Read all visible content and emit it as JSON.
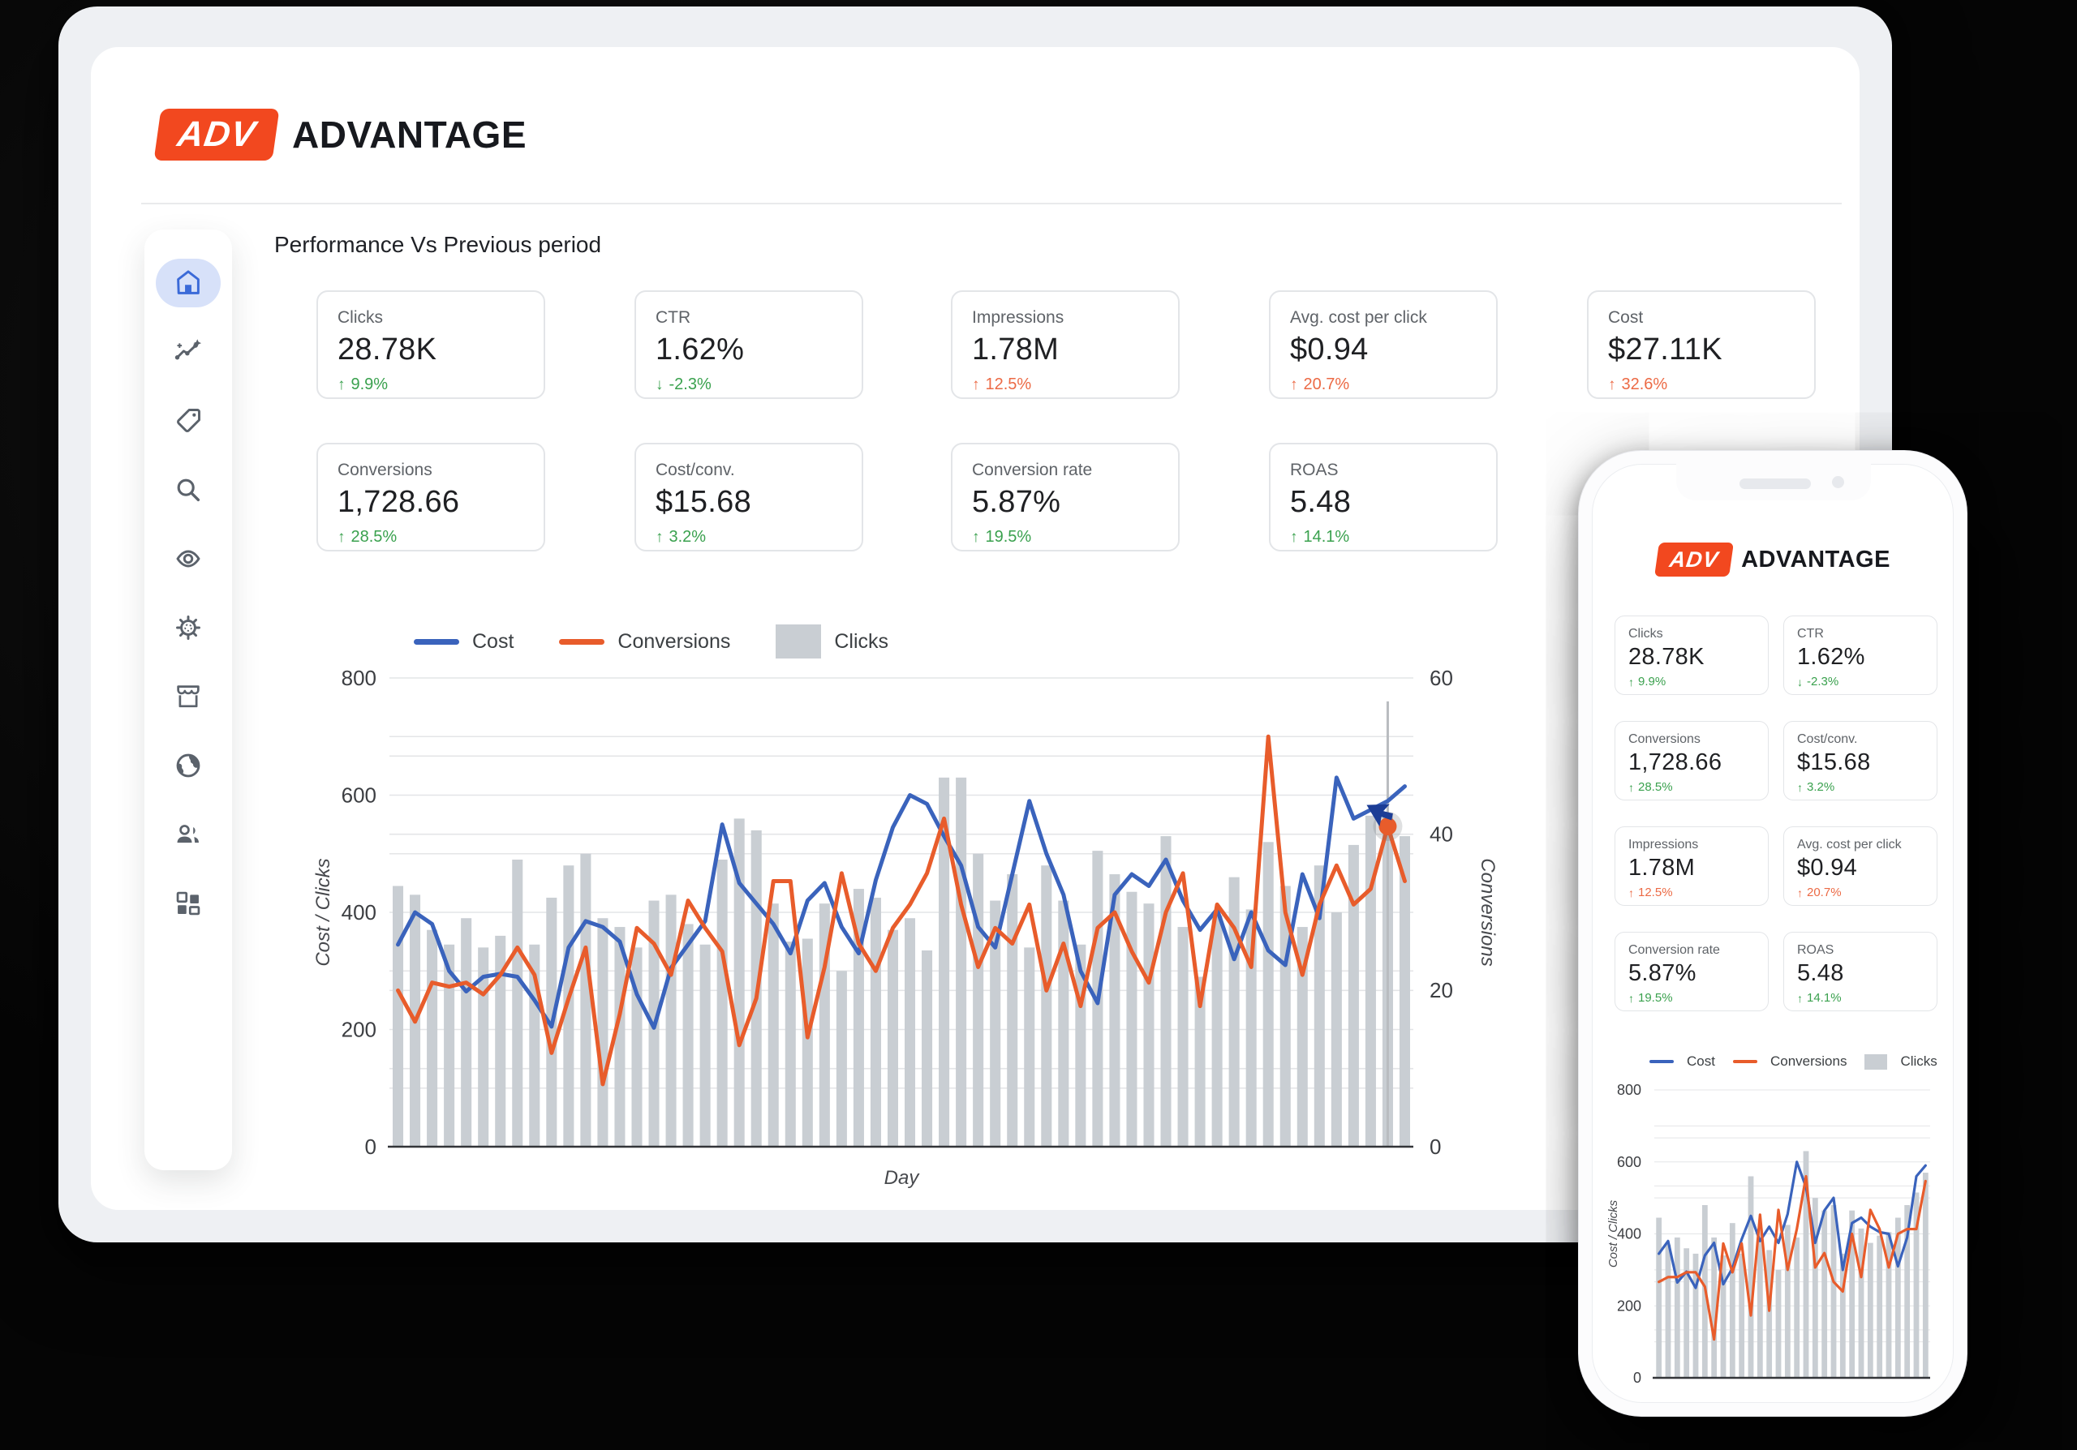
{
  "brand": {
    "badge": "ADV",
    "name": "ADVANTAGE"
  },
  "page": {
    "title": "Performance Vs Previous period"
  },
  "colors": {
    "accent_orange": "#f2481f",
    "positive_green": "#3aa14e",
    "negative_orange": "#ec6a45",
    "line_blue": "#3a63bc",
    "line_orange": "#e85c2b",
    "bar_gray": "#c9ced3",
    "active_blue": "#3b6ad8",
    "active_pill": "#d7e1f9",
    "icon_gray": "#5b626b",
    "crosshair_gray": "#b9bcc0"
  },
  "sidebar": {
    "items": [
      "home",
      "insights",
      "tag",
      "search",
      "eye",
      "gear",
      "storefront",
      "globe",
      "people",
      "dashboard-grid"
    ],
    "active": "home"
  },
  "kpis": {
    "row1": [
      {
        "label": "Clicks",
        "value": "28.78K",
        "delta": "9.9%",
        "dir": "up",
        "color": "green"
      },
      {
        "label": "CTR",
        "value": "1.62%",
        "delta": "-2.3%",
        "dir": "down",
        "color": "green"
      },
      {
        "label": "Impressions",
        "value": "1.78M",
        "delta": "12.5%",
        "dir": "up",
        "color": "orange"
      },
      {
        "label": "Avg. cost per click",
        "value": "$0.94",
        "delta": "20.7%",
        "dir": "up",
        "color": "orange"
      },
      {
        "label": "Cost",
        "value": "$27.11K",
        "delta": "32.6%",
        "dir": "up",
        "color": "orange"
      }
    ],
    "row2": [
      {
        "label": "Conversions",
        "value": "1,728.66",
        "delta": "28.5%",
        "dir": "up",
        "color": "green"
      },
      {
        "label": "Cost/conv.",
        "value": "$15.68",
        "delta": "3.2%",
        "dir": "up",
        "color": "green"
      },
      {
        "label": "Conversion rate",
        "value": "5.87%",
        "delta": "19.5%",
        "dir": "up",
        "color": "green"
      },
      {
        "label": "ROAS",
        "value": "5.48",
        "delta": "14.1%",
        "dir": "up",
        "color": "green"
      }
    ]
  },
  "phone": {
    "kpis": [
      {
        "label": "Clicks",
        "value": "28.78K",
        "delta": "9.9%",
        "dir": "up",
        "color": "green"
      },
      {
        "label": "CTR",
        "value": "1.62%",
        "delta": "-2.3%",
        "dir": "down",
        "color": "green"
      },
      {
        "label": "Conversions",
        "value": "1,728.66",
        "delta": "28.5%",
        "dir": "up",
        "color": "green"
      },
      {
        "label": "Cost/conv.",
        "value": "$15.68",
        "delta": "3.2%",
        "dir": "up",
        "color": "green"
      },
      {
        "label": "Impressions",
        "value": "1.78M",
        "delta": "12.5%",
        "dir": "up",
        "color": "orange"
      },
      {
        "label": "Avg. cost per click",
        "value": "$0.94",
        "delta": "20.7%",
        "dir": "up",
        "color": "orange"
      },
      {
        "label": "Conversion rate",
        "value": "5.87%",
        "delta": "19.5%",
        "dir": "up",
        "color": "green"
      },
      {
        "label": "ROAS",
        "value": "5.48",
        "delta": "14.1%",
        "dir": "up",
        "color": "green"
      }
    ]
  },
  "chart_data": {
    "type": "combo",
    "description": "Daily performance combo chart: gray bars = Clicks (left axis), blue line = Cost (left axis), orange line = Conversions (right axis)",
    "x_label": "Day",
    "x_range": [
      1,
      60
    ],
    "y_left": {
      "label": "Cost / Clicks",
      "min": 0,
      "max": 800,
      "ticks": [
        0,
        200,
        400,
        600,
        800
      ]
    },
    "y_right": {
      "label": "Conversions",
      "min": 0,
      "max": 60,
      "ticks": [
        0,
        20,
        40,
        60
      ]
    },
    "legend": [
      {
        "label": "Cost",
        "swatch": "line",
        "color": "#3a63bc"
      },
      {
        "label": "Conversions",
        "swatch": "line",
        "color": "#e85c2b"
      },
      {
        "label": "Clicks",
        "swatch": "bar",
        "color": "#c9ced3"
      }
    ],
    "series": {
      "clicks": [
        445,
        430,
        370,
        345,
        390,
        340,
        360,
        490,
        345,
        425,
        480,
        500,
        390,
        375,
        340,
        420,
        430,
        380,
        345,
        490,
        560,
        540,
        415,
        350,
        355,
        415,
        300,
        440,
        425,
        370,
        390,
        335,
        630,
        630,
        500,
        420,
        465,
        340,
        480,
        420,
        345,
        505,
        465,
        435,
        415,
        530,
        375,
        290,
        395,
        460,
        405,
        520,
        445,
        375,
        480,
        400,
        515,
        565,
        570,
        530
      ],
      "cost": [
        345,
        400,
        380,
        300,
        265,
        290,
        295,
        290,
        250,
        205,
        340,
        385,
        375,
        350,
        260,
        203,
        305,
        345,
        385,
        550,
        450,
        415,
        380,
        330,
        420,
        450,
        375,
        330,
        455,
        545,
        600,
        585,
        530,
        480,
        375,
        340,
        465,
        590,
        500,
        430,
        300,
        245,
        430,
        465,
        445,
        490,
        420,
        370,
        405,
        320,
        400,
        335,
        310,
        465,
        390,
        630,
        560,
        575,
        590,
        615
      ],
      "conversions": [
        20,
        16,
        21,
        20.5,
        21,
        19.5,
        22,
        25.5,
        22,
        12,
        19,
        25.5,
        8,
        17,
        28,
        26,
        22,
        31.5,
        28,
        25,
        13,
        19,
        34,
        34,
        14,
        23,
        35,
        26,
        22.5,
        28,
        31,
        35,
        42,
        31,
        23,
        28,
        26,
        31,
        20,
        26,
        18,
        28,
        30,
        25,
        21,
        30,
        35,
        18,
        31,
        28,
        23,
        52.5,
        30,
        22,
        31,
        36,
        31,
        33,
        41,
        34
      ]
    },
    "highlight": {
      "day": 59,
      "conversions": 41
    }
  }
}
